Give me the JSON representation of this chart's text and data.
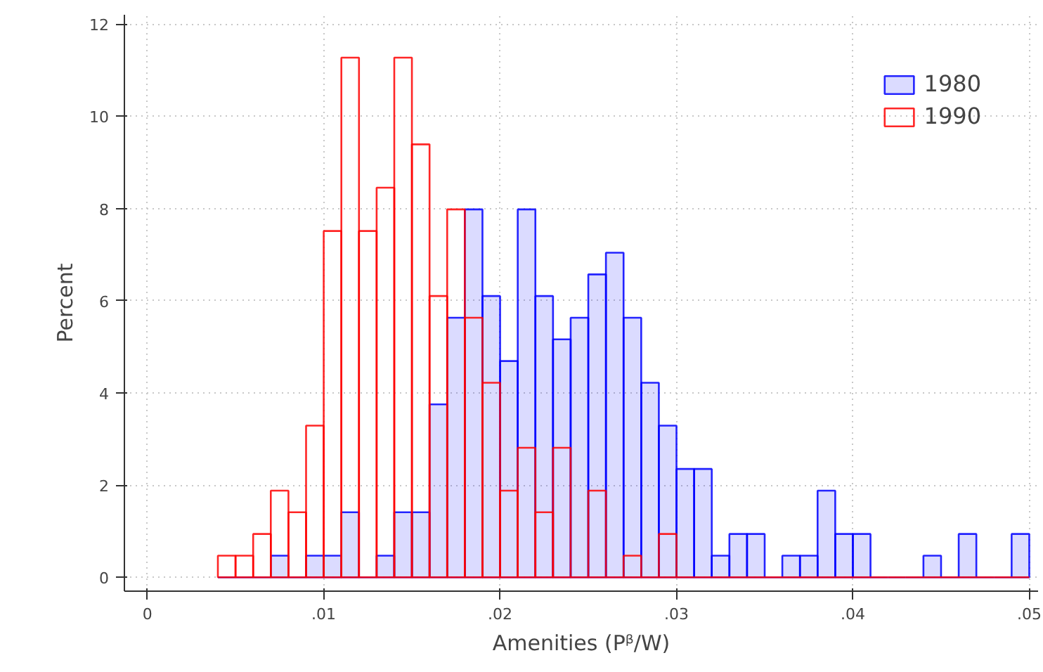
{
  "chart_data": {
    "type": "histogram",
    "xlabel": "Amenities (Pᵝ/W)",
    "ylabel": "Percent",
    "bins": [
      0.004,
      0.005,
      0.006,
      0.007,
      0.008,
      0.009,
      0.01,
      0.011,
      0.012,
      0.013,
      0.014,
      0.015,
      0.016,
      0.017,
      0.018,
      0.019,
      0.02,
      0.021,
      0.022,
      0.023,
      0.024,
      0.025,
      0.026,
      0.027,
      0.028,
      0.029,
      0.03,
      0.031,
      0.032,
      0.033,
      0.034,
      0.035,
      0.036,
      0.037,
      0.038,
      0.039,
      0.04,
      0.041,
      0.042,
      0.043,
      0.044,
      0.045,
      0.046,
      0.047,
      0.048,
      0.049,
      0.05
    ],
    "series": [
      {
        "name": "1980",
        "color": "#0000ff",
        "values": [
          0,
          0,
          0,
          0.47,
          0,
          0.47,
          0.47,
          1.41,
          0,
          0.47,
          1.41,
          1.41,
          3.75,
          5.63,
          7.98,
          6.1,
          4.69,
          7.98,
          6.1,
          5.16,
          5.63,
          6.57,
          7.04,
          5.63,
          4.22,
          3.29,
          2.35,
          2.35,
          0.47,
          0.94,
          0.94,
          0,
          0.47,
          0.47,
          1.88,
          0.94,
          0.94,
          0,
          0,
          0,
          0.47,
          0,
          0.94,
          0,
          0,
          0.94
        ]
      },
      {
        "name": "1990",
        "color": "#ff0000",
        "values": [
          0.47,
          0.47,
          0.94,
          1.88,
          1.41,
          3.29,
          7.51,
          11.27,
          7.51,
          8.45,
          11.27,
          9.39,
          6.1,
          7.98,
          5.63,
          4.22,
          1.88,
          2.81,
          1.41,
          2.81,
          0,
          1.88,
          0,
          0.47,
          0,
          0.94,
          0,
          0,
          0,
          0,
          0,
          0,
          0,
          0,
          0,
          0,
          0,
          0,
          0,
          0,
          0,
          0,
          0,
          0,
          0,
          0
        ]
      }
    ],
    "xlim": [
      -0.0013,
      0.0505
    ],
    "ylim": [
      -0.3,
      12.2
    ],
    "xticks": [
      0,
      {
        "value": 0.01,
        "label": ".01"
      },
      {
        "value": 0.02,
        "label": ".02"
      },
      {
        "value": 0.03,
        "label": ".03"
      },
      {
        "value": 0.04,
        "label": ".04"
      },
      {
        "value": 0.05,
        "label": ".05"
      }
    ],
    "yticks": [
      0,
      2,
      4,
      6,
      8,
      10,
      12
    ],
    "grid": true,
    "legend": "top right"
  }
}
